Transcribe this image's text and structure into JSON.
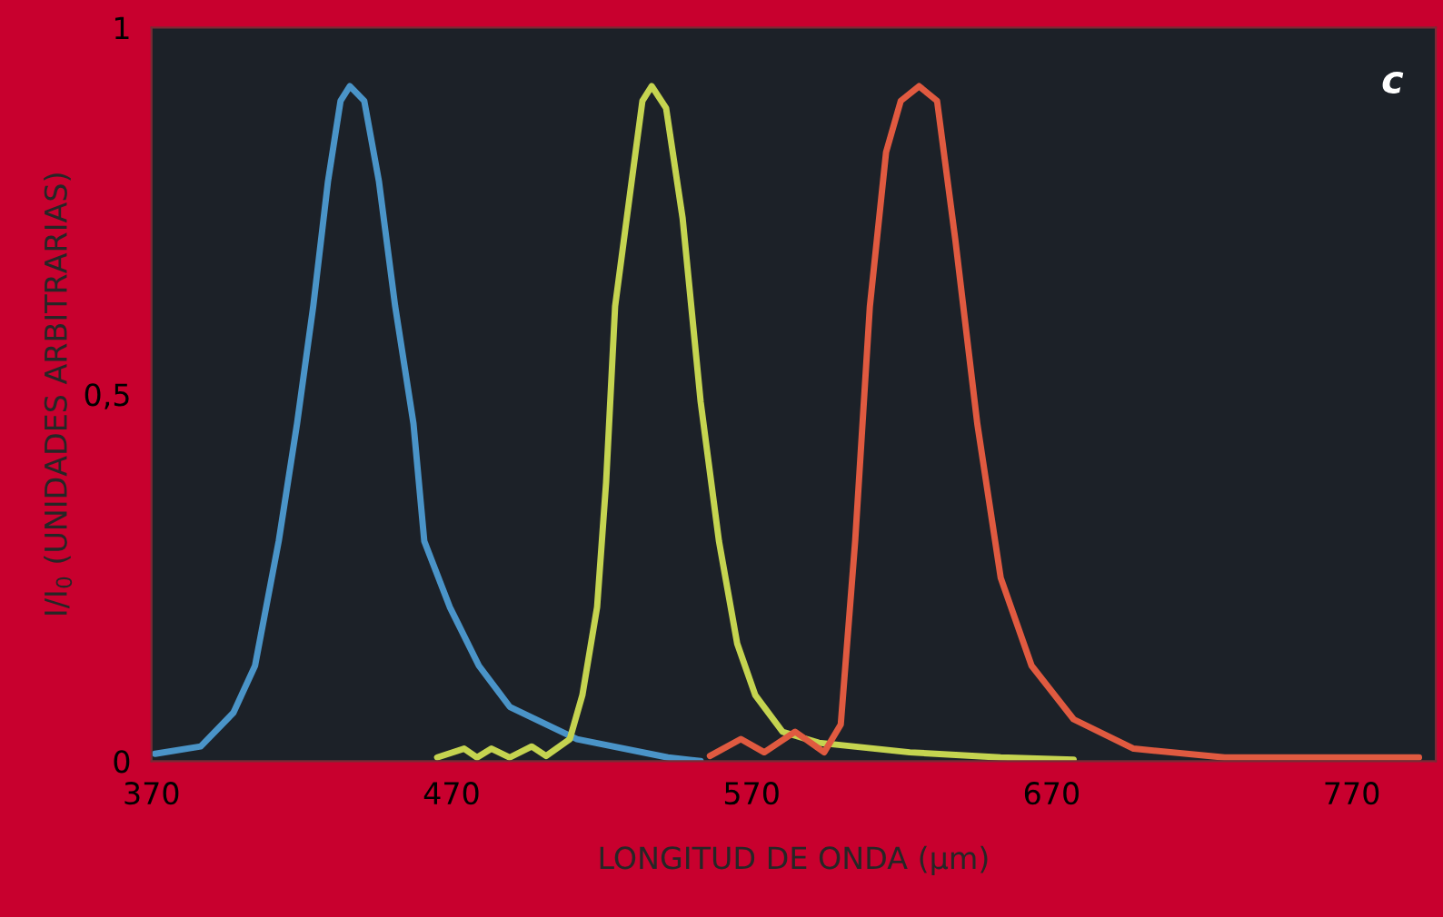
{
  "chart_data": {
    "type": "line",
    "xlabel": "LONGITUD DE ONDA (µm)",
    "ylabel": "I/I$_{0}$ (UNIDADES ARBITRARIAS)",
    "annotations": [
      "c"
    ],
    "xlim": [
      370,
      798
    ],
    "xticks": [
      370,
      470,
      570,
      670,
      770
    ],
    "ylim": [
      0,
      1
    ],
    "yticks": [
      0,
      {
        "value": 0.5,
        "label": "0,5"
      },
      1
    ],
    "grid": false,
    "line_style": "solid",
    "marker": "none",
    "series": [
      {
        "color": "#4a94c8",
        "x": [
          371.2,
          386.4,
          397.3,
          404.5,
          412.4,
          418.5,
          423.9,
          428.8,
          433.0,
          436.1,
          440.9,
          445.8,
          451.2,
          457.3,
          460.9,
          469.4,
          479.1,
          489.4,
          511.8,
          542.1,
          553
        ],
        "values": [
          0.01,
          0.02,
          0.066,
          0.13,
          0.3,
          0.46,
          0.62,
          0.79,
          0.9,
          0.92,
          0.9,
          0.79,
          0.62,
          0.46,
          0.3,
          0.21,
          0.13,
          0.074,
          0.03,
          0.005,
          0
        ]
      },
      {
        "color": "#c5d450",
        "x": [
          465.2,
          474.2,
          478.5,
          483.3,
          489.4,
          496.7,
          501.5,
          509.4,
          513.6,
          518.5,
          521.5,
          524.5,
          530,
          533.6,
          536.7,
          541.5,
          547,
          553,
          559.1,
          565.2,
          571.2,
          580.3,
          592.4,
          622.7,
          653,
          677.3
        ],
        "values": [
          0.005,
          0.017,
          0.005,
          0.017,
          0.005,
          0.02,
          0.007,
          0.03,
          0.09,
          0.21,
          0.38,
          0.62,
          0.79,
          0.9,
          0.92,
          0.89,
          0.74,
          0.49,
          0.3,
          0.16,
          0.09,
          0.04,
          0.025,
          0.012,
          0.005,
          0.002
        ]
      },
      {
        "color": "#e05a40",
        "x": [
          556.1,
          566.4,
          574.2,
          584.5,
          594.2,
          599.7,
          604.5,
          609.4,
          614.8,
          619.7,
          625.8,
          631.8,
          637.9,
          645.2,
          653,
          663.3,
          677.3,
          697.3,
          727.6,
          792.4
        ],
        "values": [
          0.007,
          0.03,
          0.012,
          0.04,
          0.012,
          0.05,
          0.3,
          0.62,
          0.83,
          0.9,
          0.92,
          0.9,
          0.71,
          0.46,
          0.25,
          0.13,
          0.057,
          0.017,
          0.005,
          0.005
        ]
      }
    ]
  }
}
